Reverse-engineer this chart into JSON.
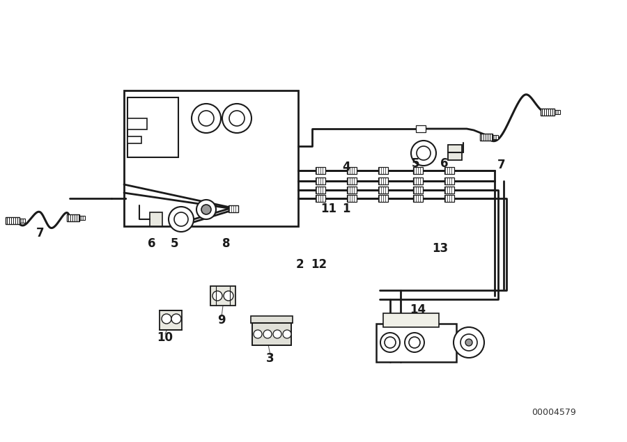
{
  "bg": "#ffffff",
  "lc": "#1a1a1a",
  "part_number": "00004579",
  "pipe_lw": 2.0,
  "comp_lw": 1.5,
  "label_fs": 12,
  "labels": [
    [
      "7",
      58,
      300
    ],
    [
      "6",
      218,
      285
    ],
    [
      "5",
      250,
      285
    ],
    [
      "8",
      325,
      285
    ],
    [
      "10",
      237,
      150
    ],
    [
      "9",
      318,
      175
    ],
    [
      "3",
      388,
      120
    ],
    [
      "2",
      430,
      255
    ],
    [
      "12",
      458,
      255
    ],
    [
      "14",
      600,
      190
    ],
    [
      "13",
      632,
      278
    ],
    [
      "11",
      472,
      335
    ],
    [
      "1",
      497,
      335
    ],
    [
      "4",
      497,
      395
    ],
    [
      "5",
      596,
      400
    ],
    [
      "6",
      638,
      400
    ],
    [
      "7",
      720,
      398
    ]
  ]
}
